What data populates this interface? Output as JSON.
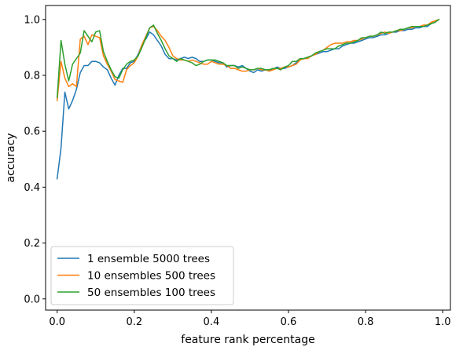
{
  "chart_data": {
    "type": "line",
    "title": "",
    "xlabel": "feature rank percentage",
    "ylabel": "accuracy",
    "xlim": [
      -0.03,
      1.02
    ],
    "ylim": [
      -0.04,
      1.05
    ],
    "xticks": [
      0.0,
      0.2,
      0.4,
      0.6,
      0.8,
      1.0
    ],
    "xtick_labels": [
      "0.0",
      "0.2",
      "0.4",
      "0.6",
      "0.8",
      "1.0"
    ],
    "yticks": [
      0.0,
      0.2,
      0.4,
      0.6,
      0.8,
      1.0
    ],
    "ytick_labels": [
      "0.0",
      "0.2",
      "0.4",
      "0.6",
      "0.8",
      "1.0"
    ],
    "grid": false,
    "legend_position": "lower-left",
    "series": [
      {
        "name": "1 ensemble 5000 trees",
        "color": "#1f77b4",
        "x": [
          0.0,
          0.01,
          0.02,
          0.03,
          0.04,
          0.05,
          0.06,
          0.07,
          0.08,
          0.09,
          0.1,
          0.11,
          0.12,
          0.13,
          0.14,
          0.15,
          0.16,
          0.17,
          0.18,
          0.19,
          0.2,
          0.21,
          0.22,
          0.23,
          0.24,
          0.25,
          0.26,
          0.27,
          0.28,
          0.29,
          0.3,
          0.31,
          0.32,
          0.33,
          0.34,
          0.35,
          0.36,
          0.37,
          0.38,
          0.39,
          0.4,
          0.41,
          0.42,
          0.43,
          0.44,
          0.45,
          0.46,
          0.47,
          0.48,
          0.49,
          0.5,
          0.51,
          0.52,
          0.53,
          0.54,
          0.55,
          0.56,
          0.57,
          0.58,
          0.59,
          0.6,
          0.61,
          0.62,
          0.63,
          0.64,
          0.65,
          0.66,
          0.67,
          0.68,
          0.69,
          0.7,
          0.71,
          0.72,
          0.73,
          0.74,
          0.75,
          0.76,
          0.77,
          0.78,
          0.79,
          0.8,
          0.81,
          0.82,
          0.83,
          0.84,
          0.85,
          0.86,
          0.87,
          0.88,
          0.89,
          0.9,
          0.91,
          0.92,
          0.93,
          0.94,
          0.95,
          0.96,
          0.97,
          0.98,
          0.99
        ],
        "y": [
          0.43,
          0.54,
          0.74,
          0.68,
          0.71,
          0.75,
          0.81,
          0.835,
          0.835,
          0.85,
          0.85,
          0.845,
          0.83,
          0.82,
          0.79,
          0.765,
          0.8,
          0.825,
          0.825,
          0.845,
          0.85,
          0.875,
          0.91,
          0.93,
          0.955,
          0.945,
          0.925,
          0.905,
          0.875,
          0.86,
          0.86,
          0.855,
          0.86,
          0.865,
          0.86,
          0.865,
          0.86,
          0.85,
          0.85,
          0.855,
          0.855,
          0.85,
          0.845,
          0.845,
          0.83,
          0.835,
          0.835,
          0.83,
          0.835,
          0.825,
          0.815,
          0.81,
          0.82,
          0.815,
          0.82,
          0.82,
          0.82,
          0.83,
          0.825,
          0.825,
          0.83,
          0.835,
          0.845,
          0.855,
          0.86,
          0.865,
          0.87,
          0.875,
          0.88,
          0.885,
          0.885,
          0.89,
          0.895,
          0.895,
          0.905,
          0.91,
          0.915,
          0.915,
          0.92,
          0.925,
          0.93,
          0.935,
          0.935,
          0.94,
          0.945,
          0.945,
          0.95,
          0.955,
          0.955,
          0.96,
          0.96,
          0.965,
          0.965,
          0.97,
          0.97,
          0.975,
          0.975,
          0.985,
          0.99,
          1.0
        ]
      },
      {
        "name": "10 ensembles 500 trees",
        "color": "#ff7f0e",
        "x": [
          0.0,
          0.01,
          0.02,
          0.03,
          0.04,
          0.05,
          0.06,
          0.07,
          0.08,
          0.09,
          0.1,
          0.11,
          0.12,
          0.13,
          0.14,
          0.15,
          0.16,
          0.17,
          0.18,
          0.19,
          0.2,
          0.21,
          0.22,
          0.23,
          0.24,
          0.25,
          0.26,
          0.27,
          0.28,
          0.29,
          0.3,
          0.31,
          0.32,
          0.33,
          0.34,
          0.35,
          0.36,
          0.37,
          0.38,
          0.39,
          0.4,
          0.41,
          0.42,
          0.43,
          0.44,
          0.45,
          0.46,
          0.47,
          0.48,
          0.49,
          0.5,
          0.51,
          0.52,
          0.53,
          0.54,
          0.55,
          0.56,
          0.57,
          0.58,
          0.59,
          0.6,
          0.61,
          0.62,
          0.63,
          0.64,
          0.65,
          0.66,
          0.67,
          0.68,
          0.69,
          0.7,
          0.71,
          0.72,
          0.73,
          0.74,
          0.75,
          0.76,
          0.77,
          0.78,
          0.79,
          0.8,
          0.81,
          0.82,
          0.83,
          0.84,
          0.85,
          0.86,
          0.87,
          0.88,
          0.89,
          0.9,
          0.91,
          0.92,
          0.93,
          0.94,
          0.95,
          0.96,
          0.97,
          0.98,
          0.99
        ],
        "y": [
          0.71,
          0.85,
          0.79,
          0.76,
          0.77,
          0.76,
          0.93,
          0.94,
          0.91,
          0.945,
          0.94,
          0.935,
          0.87,
          0.84,
          0.815,
          0.785,
          0.78,
          0.775,
          0.82,
          0.835,
          0.845,
          0.87,
          0.91,
          0.94,
          0.97,
          0.975,
          0.96,
          0.94,
          0.925,
          0.9,
          0.87,
          0.86,
          0.855,
          0.855,
          0.85,
          0.855,
          0.85,
          0.845,
          0.84,
          0.84,
          0.85,
          0.845,
          0.84,
          0.84,
          0.835,
          0.825,
          0.825,
          0.82,
          0.815,
          0.815,
          0.82,
          0.82,
          0.825,
          0.82,
          0.82,
          0.815,
          0.82,
          0.825,
          0.825,
          0.83,
          0.83,
          0.835,
          0.84,
          0.855,
          0.86,
          0.86,
          0.87,
          0.875,
          0.885,
          0.89,
          0.9,
          0.91,
          0.915,
          0.915,
          0.915,
          0.92,
          0.92,
          0.925,
          0.925,
          0.93,
          0.935,
          0.94,
          0.94,
          0.945,
          0.95,
          0.955,
          0.95,
          0.955,
          0.96,
          0.96,
          0.965,
          0.97,
          0.97,
          0.975,
          0.975,
          0.98,
          0.98,
          0.99,
          0.995,
          1.0
        ]
      },
      {
        "name": "50 ensembles 100 trees",
        "color": "#2ca02c",
        "x": [
          0.0,
          0.01,
          0.02,
          0.03,
          0.04,
          0.05,
          0.06,
          0.07,
          0.08,
          0.09,
          0.1,
          0.11,
          0.12,
          0.13,
          0.14,
          0.15,
          0.16,
          0.17,
          0.18,
          0.19,
          0.2,
          0.21,
          0.22,
          0.23,
          0.24,
          0.25,
          0.26,
          0.27,
          0.28,
          0.29,
          0.3,
          0.31,
          0.32,
          0.33,
          0.34,
          0.35,
          0.36,
          0.37,
          0.38,
          0.39,
          0.4,
          0.41,
          0.42,
          0.43,
          0.44,
          0.45,
          0.46,
          0.47,
          0.48,
          0.49,
          0.5,
          0.51,
          0.52,
          0.53,
          0.54,
          0.55,
          0.56,
          0.57,
          0.58,
          0.59,
          0.6,
          0.61,
          0.62,
          0.63,
          0.64,
          0.65,
          0.66,
          0.67,
          0.68,
          0.69,
          0.7,
          0.71,
          0.72,
          0.73,
          0.74,
          0.75,
          0.76,
          0.77,
          0.78,
          0.79,
          0.8,
          0.81,
          0.82,
          0.83,
          0.84,
          0.85,
          0.86,
          0.87,
          0.88,
          0.89,
          0.9,
          0.91,
          0.92,
          0.93,
          0.94,
          0.95,
          0.96,
          0.97,
          0.98,
          0.99
        ],
        "y": [
          0.72,
          0.925,
          0.84,
          0.78,
          0.84,
          0.86,
          0.88,
          0.96,
          0.94,
          0.92,
          0.955,
          0.96,
          0.885,
          0.85,
          0.82,
          0.795,
          0.79,
          0.82,
          0.84,
          0.85,
          0.855,
          0.87,
          0.9,
          0.935,
          0.97,
          0.98,
          0.95,
          0.925,
          0.895,
          0.87,
          0.86,
          0.85,
          0.86,
          0.855,
          0.85,
          0.845,
          0.835,
          0.84,
          0.85,
          0.855,
          0.855,
          0.855,
          0.85,
          0.845,
          0.835,
          0.835,
          0.835,
          0.825,
          0.83,
          0.825,
          0.82,
          0.82,
          0.825,
          0.825,
          0.82,
          0.82,
          0.825,
          0.825,
          0.82,
          0.83,
          0.835,
          0.85,
          0.85,
          0.86,
          0.86,
          0.865,
          0.87,
          0.88,
          0.885,
          0.89,
          0.895,
          0.895,
          0.895,
          0.905,
          0.91,
          0.915,
          0.915,
          0.92,
          0.925,
          0.935,
          0.935,
          0.94,
          0.94,
          0.945,
          0.955,
          0.95,
          0.955,
          0.955,
          0.96,
          0.965,
          0.965,
          0.97,
          0.975,
          0.975,
          0.975,
          0.975,
          0.98,
          0.985,
          0.99,
          1.0
        ]
      }
    ]
  }
}
